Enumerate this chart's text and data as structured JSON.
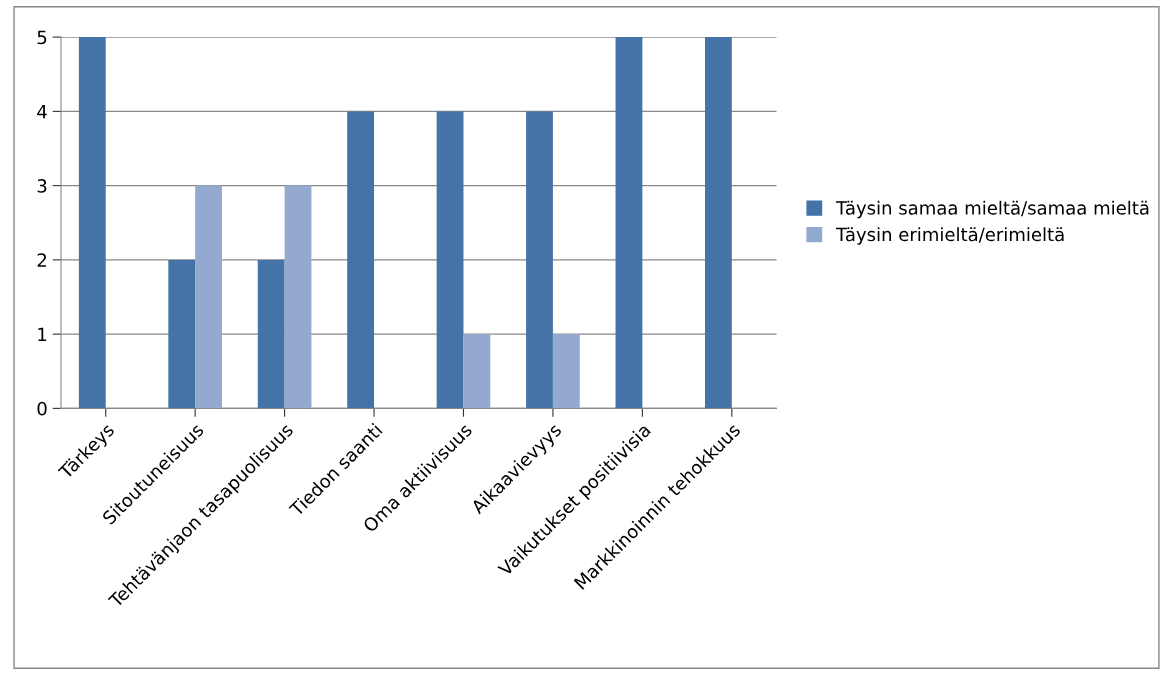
{
  "chart_data": {
    "type": "bar",
    "categories": [
      "Tärkeys",
      "Sitoutuneisuus",
      "Tehtävänjaon tasapuolisuus",
      "Tiedon saanti",
      "Oma aktiivisuus",
      "Aikaavievyys",
      "Vaikutukset positiivisia",
      "Markkinoinnin tehokkuus"
    ],
    "series": [
      {
        "name": "Täysin samaa mieltä/samaa mieltä",
        "color": "#4572a7",
        "values": [
          5,
          2,
          2,
          4,
          4,
          4,
          5,
          5
        ]
      },
      {
        "name": "Täysin erimieltä/erimieltä",
        "color": "#93a9cf",
        "values": [
          0,
          3,
          3,
          0,
          1,
          1,
          0,
          0
        ]
      }
    ],
    "ylim": [
      0,
      5
    ],
    "yticks": [
      0,
      1,
      2,
      3,
      4,
      5
    ],
    "grid": "y",
    "legend": "right"
  }
}
